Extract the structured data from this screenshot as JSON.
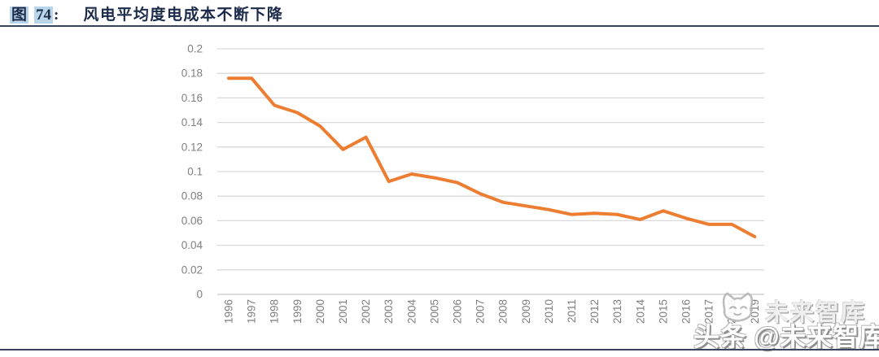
{
  "figure": {
    "label_prefix": "图",
    "label_number": "74",
    "label_colon": ":",
    "title": "风电平均度电成本不断下降"
  },
  "chart_data": {
    "type": "line",
    "title": "风电平均度电成本不断下降",
    "xlabel": "",
    "ylabel": "",
    "categories": [
      1996,
      1997,
      1998,
      1999,
      2000,
      2001,
      2002,
      2003,
      2004,
      2005,
      2006,
      2007,
      2008,
      2009,
      2010,
      2011,
      2012,
      2013,
      2014,
      2015,
      2016,
      2017,
      2018,
      2019
    ],
    "series": [
      {
        "name": "风电平均度电成本",
        "color": "#ED7D31",
        "values": [
          0.176,
          0.176,
          0.154,
          0.148,
          0.137,
          0.118,
          0.128,
          0.092,
          0.098,
          0.095,
          0.091,
          0.082,
          0.075,
          0.072,
          0.069,
          0.065,
          0.066,
          0.065,
          0.061,
          0.068,
          0.062,
          0.057,
          0.057,
          0.047
        ]
      }
    ],
    "ylim": [
      0,
      0.2
    ],
    "ytick_step": 0.02,
    "grid": true,
    "legend_position": "none",
    "x_tick_rotation": 90,
    "style": {
      "gridline_color": "#d9d9d9",
      "axis_line_color": "#c6c6c6",
      "tick_label_color": "#808080"
    }
  },
  "watermark": {
    "logo": "cat-logo",
    "secondary_text": "未来智库",
    "primary_text": "头条 @未来智库"
  }
}
